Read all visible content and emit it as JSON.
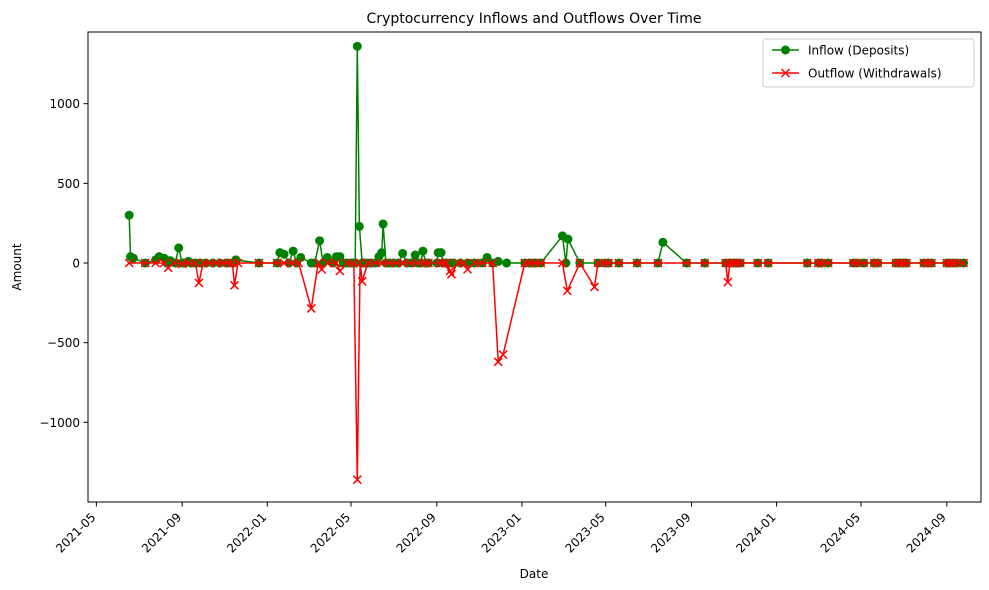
{
  "chart_data": {
    "type": "line",
    "title": "Cryptocurrency Inflows and Outflows Over Time",
    "xlabel": "Date",
    "ylabel": "Amount",
    "x_axis_type": "date",
    "xlim": [
      "2021-04-19",
      "2024-10-20"
    ],
    "ylim": [
      -1500,
      1450
    ],
    "x_tick_labels": [
      "2021-05",
      "2021-09",
      "2022-01",
      "2022-05",
      "2022-09",
      "2023-01",
      "2023-05",
      "2023-09",
      "2024-01",
      "2024-05",
      "2024-09"
    ],
    "y_ticks": [
      -1000,
      -500,
      0,
      500,
      1000
    ],
    "y_tick_labels": [
      "−1000",
      "−500",
      "0",
      "500",
      "1000"
    ],
    "legend_position": "top-right",
    "grid": false,
    "series": [
      {
        "name": "Inflow (Deposits)",
        "color": "#008000",
        "marker": "circle",
        "points": [
          [
            "2021-06-17",
            300
          ],
          [
            "2021-06-19",
            40
          ],
          [
            "2021-06-23",
            30
          ],
          [
            "2021-07-10",
            0
          ],
          [
            "2021-07-25",
            20
          ],
          [
            "2021-07-30",
            40
          ],
          [
            "2021-08-06",
            30
          ],
          [
            "2021-08-10",
            0
          ],
          [
            "2021-08-15",
            15
          ],
          [
            "2021-08-22",
            0
          ],
          [
            "2021-08-27",
            95
          ],
          [
            "2021-09-01",
            0
          ],
          [
            "2021-09-05",
            0
          ],
          [
            "2021-09-10",
            10
          ],
          [
            "2021-09-14",
            0
          ],
          [
            "2021-09-20",
            0
          ],
          [
            "2021-09-27",
            0
          ],
          [
            "2021-10-05",
            0
          ],
          [
            "2021-10-15",
            0
          ],
          [
            "2021-10-25",
            0
          ],
          [
            "2021-11-05",
            0
          ],
          [
            "2021-11-12",
            0
          ],
          [
            "2021-11-17",
            20
          ],
          [
            "2021-12-20",
            0
          ],
          [
            "2022-01-15",
            0
          ],
          [
            "2022-01-19",
            65
          ],
          [
            "2022-01-25",
            55
          ],
          [
            "2022-02-01",
            0
          ],
          [
            "2022-02-07",
            75
          ],
          [
            "2022-02-12",
            0
          ],
          [
            "2022-02-18",
            35
          ],
          [
            "2022-03-05",
            0
          ],
          [
            "2022-03-10",
            0
          ],
          [
            "2022-03-17",
            140
          ],
          [
            "2022-03-22",
            0
          ],
          [
            "2022-03-28",
            35
          ],
          [
            "2022-04-05",
            0
          ],
          [
            "2022-04-10",
            40
          ],
          [
            "2022-04-15",
            40
          ],
          [
            "2022-04-20",
            0
          ],
          [
            "2022-04-25",
            0
          ],
          [
            "2022-05-01",
            0
          ],
          [
            "2022-05-04",
            0
          ],
          [
            "2022-05-07",
            0
          ],
          [
            "2022-05-10",
            1360
          ],
          [
            "2022-05-13",
            230
          ],
          [
            "2022-05-17",
            0
          ],
          [
            "2022-05-20",
            0
          ],
          [
            "2022-05-25",
            0
          ],
          [
            "2022-05-30",
            0
          ],
          [
            "2022-06-05",
            0
          ],
          [
            "2022-06-10",
            40
          ],
          [
            "2022-06-14",
            65
          ],
          [
            "2022-06-16",
            245
          ],
          [
            "2022-06-20",
            0
          ],
          [
            "2022-06-25",
            0
          ],
          [
            "2022-07-01",
            0
          ],
          [
            "2022-07-08",
            0
          ],
          [
            "2022-07-14",
            60
          ],
          [
            "2022-07-20",
            0
          ],
          [
            "2022-07-26",
            0
          ],
          [
            "2022-08-01",
            50
          ],
          [
            "2022-08-05",
            0
          ],
          [
            "2022-08-09",
            0
          ],
          [
            "2022-08-12",
            75
          ],
          [
            "2022-08-16",
            0
          ],
          [
            "2022-08-20",
            0
          ],
          [
            "2022-09-01",
            0
          ],
          [
            "2022-09-03",
            65
          ],
          [
            "2022-09-07",
            65
          ],
          [
            "2022-09-10",
            0
          ],
          [
            "2022-09-15",
            0
          ],
          [
            "2022-09-20",
            0
          ],
          [
            "2022-09-25",
            0
          ],
          [
            "2022-10-05",
            0
          ],
          [
            "2022-10-15",
            0
          ],
          [
            "2022-10-25",
            0
          ],
          [
            "2022-11-05",
            0
          ],
          [
            "2022-11-12",
            35
          ],
          [
            "2022-11-20",
            0
          ],
          [
            "2022-11-28",
            10
          ],
          [
            "2022-12-10",
            0
          ],
          [
            "2023-01-05",
            0
          ],
          [
            "2023-01-12",
            0
          ],
          [
            "2023-01-20",
            0
          ],
          [
            "2023-01-28",
            0
          ],
          [
            "2023-02-28",
            170
          ],
          [
            "2023-03-05",
            0
          ],
          [
            "2023-03-08",
            150
          ],
          [
            "2023-03-25",
            0
          ],
          [
            "2023-04-20",
            0
          ],
          [
            "2023-04-30",
            0
          ],
          [
            "2023-05-05",
            0
          ],
          [
            "2023-05-20",
            0
          ],
          [
            "2023-06-15",
            0
          ],
          [
            "2023-07-15",
            0
          ],
          [
            "2023-07-22",
            130
          ],
          [
            "2023-08-25",
            0
          ],
          [
            "2023-09-20",
            0
          ],
          [
            "2023-10-20",
            0
          ],
          [
            "2023-10-26",
            0
          ],
          [
            "2023-11-01",
            0
          ],
          [
            "2023-11-05",
            0
          ],
          [
            "2023-11-10",
            0
          ],
          [
            "2023-12-05",
            0
          ],
          [
            "2023-12-20",
            0
          ],
          [
            "2024-02-14",
            0
          ],
          [
            "2024-03-01",
            0
          ],
          [
            "2024-03-05",
            0
          ],
          [
            "2024-03-15",
            0
          ],
          [
            "2024-04-20",
            0
          ],
          [
            "2024-04-25",
            0
          ],
          [
            "2024-05-05",
            0
          ],
          [
            "2024-05-20",
            0
          ],
          [
            "2024-05-25",
            0
          ],
          [
            "2024-06-20",
            0
          ],
          [
            "2024-06-25",
            0
          ],
          [
            "2024-07-01",
            0
          ],
          [
            "2024-07-05",
            0
          ],
          [
            "2024-07-30",
            0
          ],
          [
            "2024-08-05",
            0
          ],
          [
            "2024-08-10",
            0
          ],
          [
            "2024-09-01",
            0
          ],
          [
            "2024-09-05",
            0
          ],
          [
            "2024-09-10",
            0
          ],
          [
            "2024-09-15",
            0
          ],
          [
            "2024-09-25",
            0
          ]
        ]
      },
      {
        "name": "Outflow (Withdrawals)",
        "color": "#ff0000",
        "marker": "x",
        "points": [
          [
            "2021-06-17",
            0
          ],
          [
            "2021-07-10",
            0
          ],
          [
            "2021-07-25",
            0
          ],
          [
            "2021-08-06",
            0
          ],
          [
            "2021-08-12",
            -30
          ],
          [
            "2021-08-20",
            0
          ],
          [
            "2021-09-01",
            -5
          ],
          [
            "2021-09-10",
            0
          ],
          [
            "2021-09-20",
            0
          ],
          [
            "2021-09-25",
            -125
          ],
          [
            "2021-10-01",
            0
          ],
          [
            "2021-10-10",
            0
          ],
          [
            "2021-10-20",
            0
          ],
          [
            "2021-10-28",
            0
          ],
          [
            "2021-11-05",
            0
          ],
          [
            "2021-11-12",
            0
          ],
          [
            "2021-11-15",
            -140
          ],
          [
            "2021-11-20",
            0
          ],
          [
            "2021-12-20",
            0
          ],
          [
            "2022-01-15",
            0
          ],
          [
            "2022-01-25",
            0
          ],
          [
            "2022-02-05",
            0
          ],
          [
            "2022-02-15",
            0
          ],
          [
            "2022-03-05",
            -285
          ],
          [
            "2022-03-15",
            0
          ],
          [
            "2022-03-20",
            -40
          ],
          [
            "2022-03-28",
            0
          ],
          [
            "2022-04-10",
            0
          ],
          [
            "2022-04-15",
            -50
          ],
          [
            "2022-04-25",
            0
          ],
          [
            "2022-05-05",
            0
          ],
          [
            "2022-05-10",
            -1360
          ],
          [
            "2022-05-14",
            0
          ],
          [
            "2022-05-17",
            -115
          ],
          [
            "2022-05-25",
            0
          ],
          [
            "2022-06-05",
            0
          ],
          [
            "2022-06-15",
            0
          ],
          [
            "2022-06-25",
            0
          ],
          [
            "2022-07-05",
            0
          ],
          [
            "2022-07-15",
            0
          ],
          [
            "2022-07-25",
            0
          ],
          [
            "2022-08-05",
            0
          ],
          [
            "2022-08-15",
            0
          ],
          [
            "2022-08-20",
            0
          ],
          [
            "2022-09-05",
            0
          ],
          [
            "2022-09-10",
            0
          ],
          [
            "2022-09-15",
            0
          ],
          [
            "2022-09-20",
            -50
          ],
          [
            "2022-09-22",
            -70
          ],
          [
            "2022-10-01",
            0
          ],
          [
            "2022-10-10",
            0
          ],
          [
            "2022-10-15",
            -40
          ],
          [
            "2022-10-25",
            0
          ],
          [
            "2022-11-05",
            0
          ],
          [
            "2022-11-20",
            0
          ],
          [
            "2022-11-28",
            -620
          ],
          [
            "2022-12-05",
            -575
          ],
          [
            "2023-01-05",
            0
          ],
          [
            "2023-01-12",
            0
          ],
          [
            "2023-01-20",
            0
          ],
          [
            "2023-01-28",
            0
          ],
          [
            "2023-02-28",
            0
          ],
          [
            "2023-03-07",
            -175
          ],
          [
            "2023-03-25",
            0
          ],
          [
            "2023-04-15",
            -150
          ],
          [
            "2023-04-20",
            0
          ],
          [
            "2023-04-30",
            0
          ],
          [
            "2023-05-05",
            0
          ],
          [
            "2023-05-20",
            0
          ],
          [
            "2023-06-15",
            0
          ],
          [
            "2023-07-15",
            0
          ],
          [
            "2023-08-25",
            0
          ],
          [
            "2023-09-20",
            0
          ],
          [
            "2023-10-20",
            0
          ],
          [
            "2023-10-23",
            -120
          ],
          [
            "2023-10-26",
            0
          ],
          [
            "2023-11-01",
            0
          ],
          [
            "2023-11-05",
            0
          ],
          [
            "2023-11-10",
            0
          ],
          [
            "2023-12-05",
            0
          ],
          [
            "2023-12-20",
            0
          ],
          [
            "2024-02-14",
            0
          ],
          [
            "2024-03-01",
            0
          ],
          [
            "2024-03-05",
            0
          ],
          [
            "2024-03-15",
            0
          ],
          [
            "2024-04-20",
            0
          ],
          [
            "2024-04-25",
            0
          ],
          [
            "2024-05-05",
            0
          ],
          [
            "2024-05-20",
            0
          ],
          [
            "2024-05-25",
            0
          ],
          [
            "2024-06-20",
            0
          ],
          [
            "2024-06-25",
            0
          ],
          [
            "2024-07-01",
            0
          ],
          [
            "2024-07-05",
            0
          ],
          [
            "2024-07-30",
            0
          ],
          [
            "2024-08-05",
            0
          ],
          [
            "2024-08-10",
            0
          ],
          [
            "2024-09-01",
            0
          ],
          [
            "2024-09-05",
            0
          ],
          [
            "2024-09-10",
            0
          ],
          [
            "2024-09-15",
            0
          ],
          [
            "2024-09-25",
            0
          ]
        ]
      }
    ]
  }
}
